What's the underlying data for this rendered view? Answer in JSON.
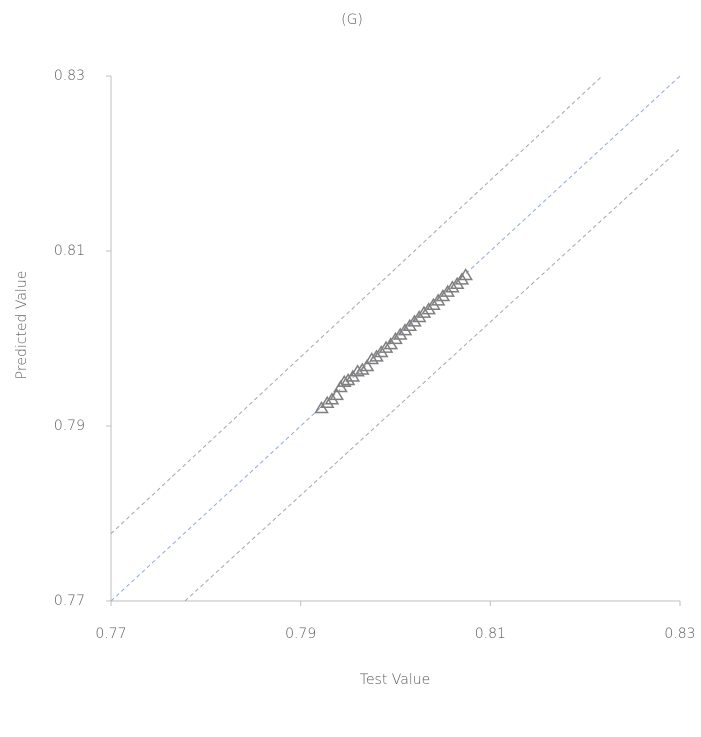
{
  "chart_data": {
    "type": "scatter",
    "title": "(G)",
    "x_label": "Test Value",
    "y_label": "Predicted Value",
    "xlim": [
      0.77,
      0.83
    ],
    "ylim": [
      0.77,
      0.83
    ],
    "xticks": [
      0.77,
      0.79,
      0.81,
      0.83
    ],
    "yticks": [
      0.77,
      0.79,
      0.81,
      0.83
    ],
    "series": [
      {
        "type": "scatter",
        "marker": "triangle",
        "color": "#7f7f7f",
        "x": [
          0.7922,
          0.7928,
          0.7933,
          0.7938,
          0.7942,
          0.7946,
          0.795,
          0.7955,
          0.796,
          0.7965,
          0.797,
          0.7975,
          0.798,
          0.7985,
          0.799,
          0.7995,
          0.8,
          0.8005,
          0.801,
          0.8015,
          0.802,
          0.8025,
          0.803,
          0.8035,
          0.804,
          0.8045,
          0.805,
          0.8055,
          0.806,
          0.8065,
          0.807,
          0.8074
        ],
        "values": [
          0.792,
          0.7926,
          0.793,
          0.7935,
          0.7944,
          0.795,
          0.7952,
          0.7956,
          0.7962,
          0.7964,
          0.7968,
          0.7976,
          0.7979,
          0.7984,
          0.7989,
          0.7993,
          0.7999,
          0.8004,
          0.8009,
          0.8014,
          0.8019,
          0.8024,
          0.8029,
          0.8033,
          0.8038,
          0.8043,
          0.8048,
          0.8053,
          0.8058,
          0.8062,
          0.8067,
          0.8072
        ]
      },
      {
        "type": "line",
        "color": "#8eaadb",
        "x": [
          0.77,
          0.83
        ],
        "values": [
          0.77,
          0.83
        ]
      },
      {
        "type": "line",
        "color": "#a6a6a6",
        "x": [
          0.77,
          0.8218
        ],
        "values": [
          0.7777,
          0.83
        ]
      },
      {
        "type": "line",
        "color": "#a6a6a6",
        "x": [
          0.7778,
          0.83
        ],
        "values": [
          0.77,
          0.8217
        ]
      }
    ]
  }
}
